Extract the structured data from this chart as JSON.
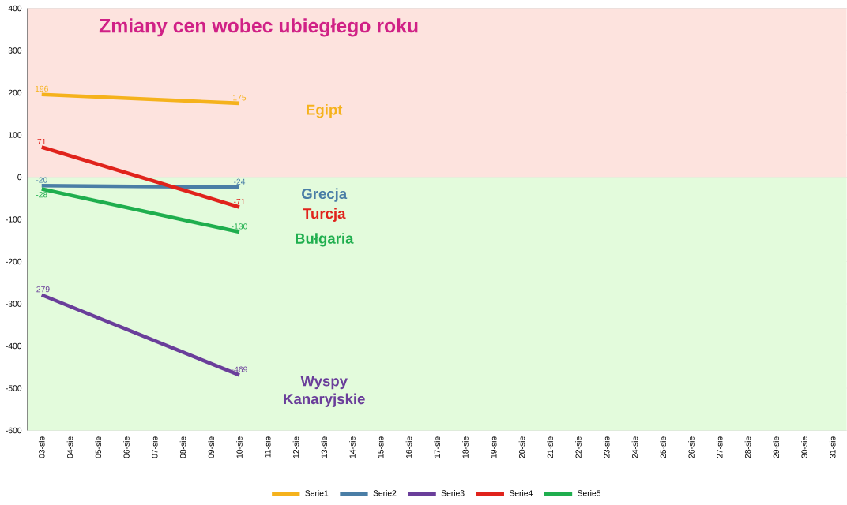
{
  "chart_data": {
    "type": "line",
    "title": "Zmiany cen wobec ubiegłego roku",
    "categories": [
      "03-sie",
      "04-sie",
      "05-sie",
      "06-sie",
      "07-sie",
      "08-sie",
      "09-sie",
      "10-sie",
      "11-sie",
      "12-sie",
      "13-sie",
      "14-sie",
      "15-sie",
      "16-sie",
      "17-sie",
      "18-sie",
      "19-sie",
      "20-sie",
      "21-sie",
      "22-sie",
      "23-sie",
      "24-sie",
      "25-sie",
      "26-sie",
      "27-sie",
      "28-sie",
      "29-sie",
      "30-sie",
      "31-sie"
    ],
    "series": [
      {
        "name": "Serie1",
        "color": "#f5b21c",
        "values": [
          196,
          null,
          null,
          null,
          null,
          null,
          null,
          175,
          null,
          null,
          null,
          null,
          null,
          null,
          null,
          null,
          null,
          null,
          null,
          null,
          null,
          null,
          null,
          null,
          null,
          null,
          null,
          null,
          null
        ]
      },
      {
        "name": "Serie2",
        "color": "#4a7ea6",
        "values": [
          -20,
          null,
          null,
          null,
          null,
          null,
          null,
          -24,
          null,
          null,
          null,
          null,
          null,
          null,
          null,
          null,
          null,
          null,
          null,
          null,
          null,
          null,
          null,
          null,
          null,
          null,
          null,
          null,
          null
        ]
      },
      {
        "name": "Serie3",
        "color": "#6a3e9a",
        "values": [
          -279,
          null,
          null,
          null,
          null,
          null,
          null,
          -469,
          null,
          null,
          null,
          null,
          null,
          null,
          null,
          null,
          null,
          null,
          null,
          null,
          null,
          null,
          null,
          null,
          null,
          null,
          null,
          null,
          null
        ]
      },
      {
        "name": "Serie4",
        "color": "#e0231c",
        "values": [
          71,
          null,
          null,
          null,
          null,
          null,
          null,
          -71,
          null,
          null,
          null,
          null,
          null,
          null,
          null,
          null,
          null,
          null,
          null,
          null,
          null,
          null,
          null,
          null,
          null,
          null,
          null,
          null,
          null
        ]
      },
      {
        "name": "Serie5",
        "color": "#1fae4e",
        "values": [
          -28,
          null,
          null,
          null,
          null,
          null,
          null,
          -130,
          null,
          null,
          null,
          null,
          null,
          null,
          null,
          null,
          null,
          null,
          null,
          null,
          null,
          null,
          null,
          null,
          null,
          null,
          null,
          null,
          null
        ]
      }
    ],
    "annotations": [
      "Egipt",
      "Grecja",
      "Wyspy Kanaryjskie",
      "Turcja",
      "Bułgaria"
    ],
    "bands": [
      {
        "axis": "y",
        "from": 0,
        "to": 400,
        "color": "#fde3de"
      },
      {
        "axis": "y",
        "from": -600,
        "to": 0,
        "color": "#e3fbdc"
      }
    ],
    "ylim": [
      -600,
      400
    ],
    "yticks": [
      -600,
      -500,
      -400,
      -300,
      -200,
      -100,
      0,
      100,
      200,
      300,
      400
    ],
    "grid": "y",
    "legend": "bottom",
    "data_labels": true
  }
}
